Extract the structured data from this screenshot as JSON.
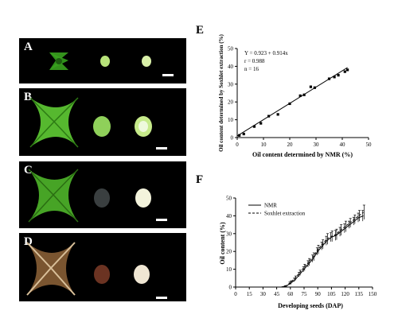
{
  "photos": [
    {
      "label": "A",
      "color": "#2f8f1a"
    },
    {
      "label": "B",
      "color": "#4fb02c"
    },
    {
      "label": "C",
      "color": "#3f9b23"
    },
    {
      "label": "D",
      "color": "#6b4a2a"
    }
  ],
  "panel_e": {
    "letter": "E",
    "equation": "Y = 0.923 + 0.914x",
    "r_text": "r = 0.988",
    "n_text": "n = 16"
  },
  "panel_f": {
    "letter": "F"
  },
  "chart_data": [
    {
      "type": "scatter",
      "xlabel": "Oil content determined by NMR (%)",
      "ylabel": "Oil content determined by Soxhlet extraction (%)",
      "xlim": [
        0,
        50
      ],
      "ylim": [
        0,
        50
      ],
      "xticks": [
        "0",
        "10",
        "20",
        "30",
        "40",
        "50"
      ],
      "yticks": [
        "0",
        "10",
        "20",
        "30",
        "40",
        "50"
      ],
      "grid": false,
      "points": [
        [
          0.8,
          1.2
        ],
        [
          2.5,
          2.0
        ],
        [
          6.5,
          6.2
        ],
        [
          9.0,
          8.0
        ],
        [
          12.0,
          12.0
        ],
        [
          15.5,
          13.0
        ],
        [
          20.0,
          19.0
        ],
        [
          24.0,
          23.5
        ],
        [
          25.5,
          24.0
        ],
        [
          28.0,
          28.5
        ],
        [
          29.5,
          28.0
        ],
        [
          35.0,
          33.0
        ],
        [
          37.0,
          34.0
        ],
        [
          38.5,
          35.0
        ],
        [
          41.0,
          37.0
        ],
        [
          42.0,
          38.0
        ]
      ],
      "fit_line": {
        "intercept": 0.923,
        "slope": 0.914,
        "x_range": [
          0,
          42
        ]
      }
    },
    {
      "type": "line",
      "xlabel": "Developing seeds (DAP)",
      "ylabel": "Oil content (%)",
      "xlim": [
        0,
        150
      ],
      "ylim": [
        0,
        50
      ],
      "xticks": [
        "0",
        "15",
        "30",
        "45",
        "60",
        "75",
        "90",
        "105",
        "120",
        "135",
        "150"
      ],
      "yticks": [
        "0",
        "10",
        "20",
        "30",
        "40",
        "50"
      ],
      "grid": false,
      "legend_position": "top-left",
      "series": [
        {
          "name": "NMR",
          "style": "solid",
          "x": [
            50,
            55,
            60,
            65,
            70,
            75,
            80,
            85,
            90,
            95,
            100,
            105,
            110,
            115,
            120,
            125,
            130,
            135,
            140
          ],
          "y": [
            0,
            0.5,
            2,
            4,
            7,
            10,
            13,
            16,
            20,
            23,
            26,
            28,
            29,
            31,
            33,
            35,
            37,
            39,
            40
          ],
          "err": [
            0,
            0.3,
            0.8,
            1.0,
            1.2,
            1.5,
            1.8,
            2.0,
            2.0,
            2.2,
            2.5,
            2.5,
            2.8,
            2.5,
            2.5,
            2.0,
            2.2,
            2.5,
            3.0
          ]
        },
        {
          "name": "Soxhlet extraction",
          "style": "dashed",
          "x": [
            50,
            55,
            60,
            65,
            70,
            75,
            80,
            85,
            90,
            95,
            100,
            105,
            110,
            115,
            120,
            125,
            130,
            135,
            140
          ],
          "y": [
            0,
            0.5,
            2.5,
            5,
            8,
            11,
            14,
            17,
            21,
            24,
            27,
            28.5,
            29.5,
            32,
            34,
            36,
            38,
            40,
            42
          ],
          "err": [
            0,
            0.3,
            1.0,
            1.2,
            1.5,
            1.8,
            2.0,
            2.2,
            2.5,
            2.5,
            3.0,
            3.0,
            3.0,
            3.0,
            3.0,
            2.5,
            2.5,
            3.0,
            4.0
          ]
        }
      ]
    }
  ]
}
